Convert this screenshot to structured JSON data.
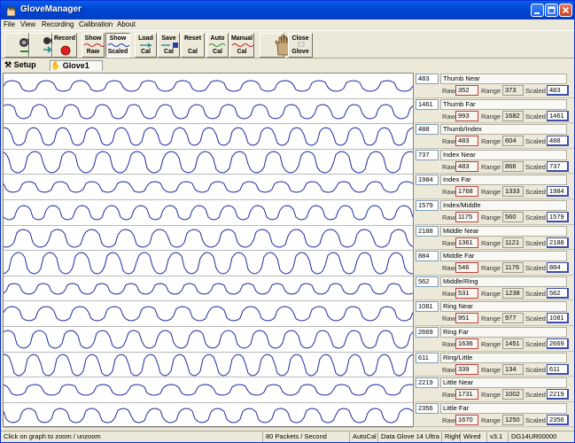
{
  "window": {
    "title": "GloveManager"
  },
  "menu": [
    "File",
    "View",
    "Recording",
    "Calibration",
    "About"
  ],
  "toolbar": {
    "show_raw": [
      "Show",
      "Raw"
    ],
    "show_scaled": [
      "Show",
      "Scaled"
    ],
    "load_cal": [
      "Load",
      "Cal"
    ],
    "save_cal": [
      "Save",
      "Cal"
    ],
    "reset_cal": [
      "Reset",
      "Cal"
    ],
    "auto_cal": [
      "Auto",
      "Cal"
    ],
    "manual_cal": [
      "Manual",
      "Cal"
    ],
    "close_glove": [
      "Close",
      "Glove"
    ],
    "record": "Record"
  },
  "tabs": {
    "setup": "Setup",
    "glove": "Glove1"
  },
  "labels": {
    "raw": "Raw",
    "range": "Range",
    "scaled": "Scaled"
  },
  "sensors": [
    {
      "name": "Thumb Near",
      "current": "483",
      "raw": "352",
      "range": "373",
      "scaled": "483"
    },
    {
      "name": "Thumb Far",
      "current": "1461",
      "raw": "993",
      "range": "1682",
      "scaled": "1461"
    },
    {
      "name": "Thumb/Index",
      "current": "488",
      "raw": "483",
      "range": "604",
      "scaled": "488"
    },
    {
      "name": "Index Near",
      "current": "737",
      "raw": "483",
      "range": "866",
      "scaled": "737"
    },
    {
      "name": "Index Far",
      "current": "1984",
      "raw": "1768",
      "range": "1333",
      "scaled": "1984"
    },
    {
      "name": "Index/Middle",
      "current": "1579",
      "raw": "1175",
      "range": "560",
      "scaled": "1579"
    },
    {
      "name": "Middle Near",
      "current": "2188",
      "raw": "1361",
      "range": "1121",
      "scaled": "2188"
    },
    {
      "name": "Middle Far",
      "current": "884",
      "raw": "546",
      "range": "1176",
      "scaled": "884"
    },
    {
      "name": "Middle/Ring",
      "current": "562",
      "raw": "531",
      "range": "1238",
      "scaled": "562"
    },
    {
      "name": "Ring Near",
      "current": "1081",
      "raw": "951",
      "range": "977",
      "scaled": "1081"
    },
    {
      "name": "Ring Far",
      "current": "2669",
      "raw": "1636",
      "range": "1451",
      "scaled": "2669"
    },
    {
      "name": "Ring/Little",
      "current": "611",
      "raw": "339",
      "range": "134",
      "scaled": "611"
    },
    {
      "name": "Little Near",
      "current": "2219",
      "raw": "1731",
      "range": "1002",
      "scaled": "2219"
    },
    {
      "name": "Little Far",
      "current": "2356",
      "raw": "1670",
      "range": "1250",
      "scaled": "2356"
    }
  ],
  "status": {
    "hint": "Click on graph to zoom / unzoom",
    "packets": "80 Packets / Second",
    "autocal": "AutoCal",
    "device": "Data Glove 14 Ultra",
    "hand": "Right",
    "connection": "Wired",
    "version": "v3.1",
    "serial": "DG14UR00000"
  },
  "colors": {
    "trace": "#1f2aa0",
    "title_bar": "#0047d6"
  }
}
